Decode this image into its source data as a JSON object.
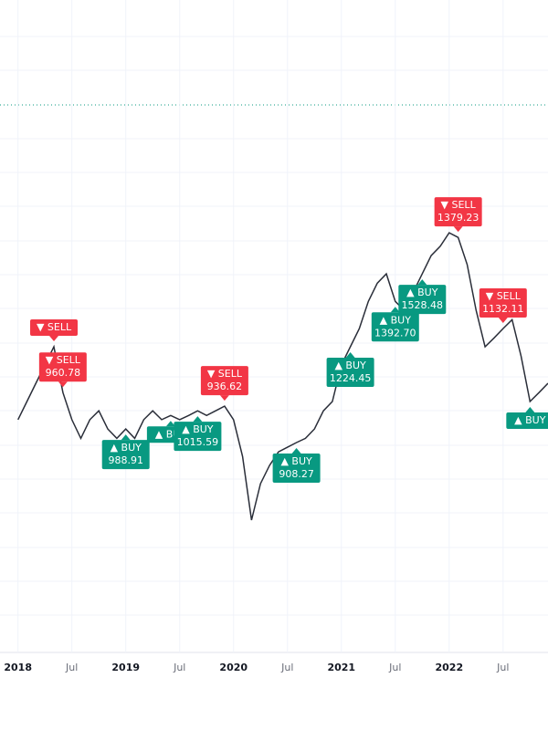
{
  "chart_data": {
    "type": "line",
    "x": [
      "2018-01",
      "2018-02",
      "2018-03",
      "2018-04",
      "2018-05",
      "2018-06",
      "2018-07",
      "2018-08",
      "2018-09",
      "2018-10",
      "2018-11",
      "2018-12",
      "2019-01",
      "2019-02",
      "2019-03",
      "2019-04",
      "2019-05",
      "2019-06",
      "2019-07",
      "2019-08",
      "2019-09",
      "2019-10",
      "2019-11",
      "2019-12",
      "2020-01",
      "2020-02",
      "2020-03",
      "2020-04",
      "2020-05",
      "2020-06",
      "2020-07",
      "2020-08",
      "2020-09",
      "2020-10",
      "2020-11",
      "2020-12",
      "2021-01",
      "2021-02",
      "2021-03",
      "2021-04",
      "2021-05",
      "2021-06",
      "2021-07",
      "2021-08",
      "2021-09",
      "2021-10",
      "2021-11",
      "2021-12",
      "2022-01",
      "2022-02",
      "2022-03",
      "2022-04",
      "2022-05",
      "2022-06",
      "2022-07",
      "2022-08",
      "2022-09",
      "2022-10",
      "2022-11",
      "2022-12"
    ],
    "series": [
      {
        "color": "#2a2e39",
        "values": [
          1024,
          1071,
          1118,
          1165,
          1212,
          1094,
          1024,
          976,
          1024,
          1047,
          1000,
          976,
          1000,
          976,
          1024,
          1047,
          1024,
          1035,
          1024,
          1035,
          1047,
          1035,
          1047,
          1059,
          1024,
          929,
          765,
          859,
          906,
          941,
          953,
          965,
          976,
          1000,
          1047,
          1071,
          1165,
          1212,
          1259,
          1329,
          1376,
          1400,
          1329,
          1306,
          1353,
          1400,
          1447,
          1471,
          1506,
          1494,
          1424,
          1306,
          1212,
          1235,
          1259,
          1282,
          1188,
          1071,
          1094,
          1118
        ]
      }
    ],
    "xlim": [
      "2017-11",
      "2022-12"
    ],
    "ylim": [
      424,
      2106
    ],
    "xticks": [
      {
        "value": "2018-01",
        "label": "2018"
      },
      {
        "value": "2018-07",
        "label": "Jul"
      },
      {
        "value": "2019-01",
        "label": "2019"
      },
      {
        "value": "2019-07",
        "label": "Jul"
      },
      {
        "value": "2020-01",
        "label": "2020"
      },
      {
        "value": "2020-07",
        "label": "Jul"
      },
      {
        "value": "2021-01",
        "label": "2021"
      },
      {
        "value": "2021-07",
        "label": "Jul"
      },
      {
        "value": "2022-01",
        "label": "2022"
      },
      {
        "value": "2022-07",
        "label": "Jul"
      }
    ],
    "signals": [
      {
        "x": "2018-05",
        "label": "▼ SELL"
      },
      {
        "x": "2018-06",
        "label": "▼ SELL",
        "price": 960.78
      },
      {
        "x": "2019-01",
        "label": "▲ BUY",
        "price": 988.91
      },
      {
        "x": "2019-06",
        "label": "▲ BUY"
      },
      {
        "x": "2019-09",
        "label": "▲ BUY",
        "price": 1015.59
      },
      {
        "x": "2019-12",
        "label": "▼ SELL",
        "price": 936.62
      },
      {
        "x": "2020-08",
        "label": "▲ BUY",
        "price": 908.27
      },
      {
        "x": "2021-02",
        "label": "▲ BUY",
        "price": 1224.45
      },
      {
        "x": "2021-07",
        "label": "▲ BUY",
        "price": 1392.7,
        "price_label": "1392.70"
      },
      {
        "x": "2021-10",
        "label": "▲ BUY",
        "price": 1528.48
      },
      {
        "x": "2022-02",
        "label": "▼ SELL",
        "price": 1379.23
      },
      {
        "x": "2022-07",
        "label": "▼ SELL",
        "price": 1132.11
      },
      {
        "x": "2022-10",
        "label": "▲ BUY"
      }
    ],
    "grid": true,
    "buy_color": "#089981",
    "sell_color": "#f23645"
  }
}
